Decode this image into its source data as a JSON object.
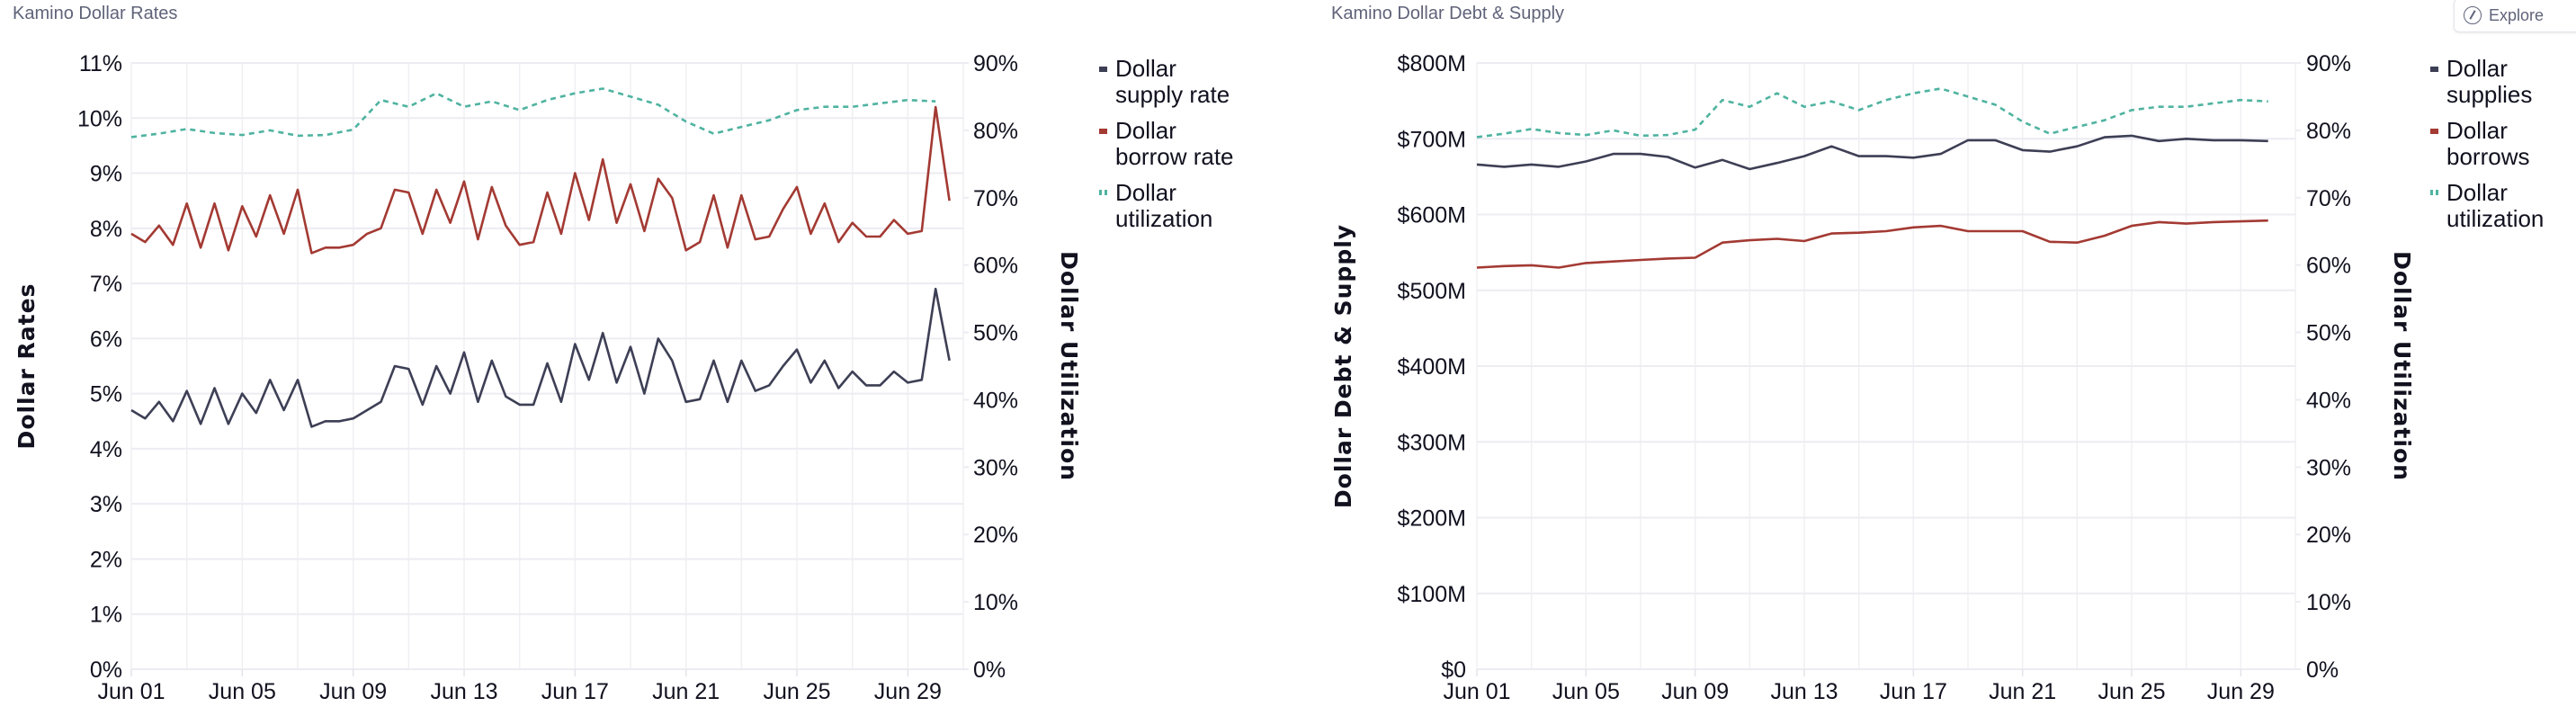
{
  "explore_button": {
    "label": "Explore"
  },
  "chart_data": [
    {
      "type": "line",
      "title": "Kamino Dollar Rates",
      "ylabel": "Dollar Rates",
      "y2label": "Dollar Utilization",
      "x_ticks": [
        "Jun 01",
        "Jun 05",
        "Jun 09",
        "Jun 13",
        "Jun 17",
        "Jun 21",
        "Jun 25",
        "Jun 29"
      ],
      "x_range_days": [
        1,
        31
      ],
      "ylim": [
        0,
        11
      ],
      "y_ticks": [
        "0%",
        "1%",
        "2%",
        "3%",
        "4%",
        "5%",
        "6%",
        "7%",
        "8%",
        "9%",
        "10%",
        "11%"
      ],
      "y2lim": [
        0,
        90
      ],
      "y2_ticks": [
        "0%",
        "10%",
        "20%",
        "30%",
        "40%",
        "50%",
        "60%",
        "70%",
        "80%",
        "90%"
      ],
      "grid": true,
      "legend_position": "right",
      "legend": [
        "Dollar supply rate",
        "Dollar borrow rate",
        "Dollar utilization"
      ],
      "series": [
        {
          "name": "Dollar supply rate",
          "axis": "left",
          "color": "#3d3f55",
          "x_start_day": 1,
          "step_days": 0.5,
          "values": [
            4.7,
            4.55,
            4.85,
            4.5,
            5.05,
            4.45,
            5.1,
            4.45,
            5.0,
            4.65,
            5.25,
            4.7,
            5.25,
            4.4,
            4.5,
            4.5,
            4.55,
            4.7,
            4.85,
            5.5,
            5.45,
            4.8,
            5.5,
            5.0,
            5.75,
            4.85,
            5.6,
            4.95,
            4.8,
            4.8,
            5.55,
            4.85,
            5.9,
            5.25,
            6.1,
            5.2,
            5.85,
            5.0,
            6.0,
            5.6,
            4.85,
            4.9,
            5.6,
            4.85,
            5.6,
            5.05,
            5.15,
            5.5,
            5.8,
            5.2,
            5.6,
            5.1,
            5.4,
            5.15,
            5.15,
            5.4,
            5.2,
            5.25,
            6.9,
            5.6
          ]
        },
        {
          "name": "Dollar borrow rate",
          "axis": "left",
          "color": "#a33a33",
          "x_start_day": 1,
          "step_days": 0.5,
          "values": [
            7.9,
            7.75,
            8.05,
            7.7,
            8.45,
            7.65,
            8.45,
            7.6,
            8.4,
            7.85,
            8.6,
            7.9,
            8.7,
            7.55,
            7.65,
            7.65,
            7.7,
            7.9,
            8.0,
            8.7,
            8.65,
            7.9,
            8.7,
            8.1,
            8.85,
            7.8,
            8.75,
            8.05,
            7.7,
            7.75,
            8.65,
            7.9,
            9.0,
            8.15,
            9.25,
            8.1,
            8.8,
            7.95,
            8.9,
            8.55,
            7.6,
            7.75,
            8.6,
            7.65,
            8.6,
            7.8,
            7.85,
            8.35,
            8.75,
            7.9,
            8.45,
            7.75,
            8.1,
            7.85,
            7.85,
            8.15,
            7.9,
            7.95,
            10.2,
            8.5
          ]
        },
        {
          "name": "Dollar utilization",
          "axis": "right",
          "color": "#4fb3a0",
          "dashed": true,
          "x_start_day": 1,
          "step_days": 1,
          "values": [
            79.0,
            79.5,
            80.2,
            79.6,
            79.3,
            80.0,
            79.2,
            79.3,
            80.1,
            84.5,
            83.5,
            85.5,
            83.5,
            84.3,
            83.0,
            84.5,
            85.5,
            86.2,
            85.0,
            83.8,
            81.3,
            79.5,
            80.5,
            81.5,
            83.0,
            83.5,
            83.5,
            84.0,
            84.5,
            84.3
          ]
        }
      ]
    },
    {
      "type": "line",
      "title": "Kamino Dollar Debt & Supply",
      "ylabel": "Dollar Debt & Supply",
      "y2label": "Dollar Utilization",
      "x_ticks": [
        "Jun 01",
        "Jun 05",
        "Jun 09",
        "Jun 13",
        "Jun 17",
        "Jun 21",
        "Jun 25",
        "Jun 29"
      ],
      "x_range_days": [
        1,
        31
      ],
      "ylim": [
        0,
        800
      ],
      "y_ticks": [
        "$0",
        "$100M",
        "$200M",
        "$300M",
        "$400M",
        "$500M",
        "$600M",
        "$700M",
        "$800M"
      ],
      "y2lim": [
        0,
        90
      ],
      "y2_ticks": [
        "0%",
        "10%",
        "20%",
        "30%",
        "40%",
        "50%",
        "60%",
        "70%",
        "80%",
        "90%"
      ],
      "grid": true,
      "legend_position": "right",
      "legend": [
        "Dollar supplies",
        "Dollar borrows",
        "Dollar utilization"
      ],
      "series": [
        {
          "name": "Dollar supplies",
          "axis": "left",
          "color": "#3d3f55",
          "x_start_day": 1,
          "step_days": 1,
          "values": [
            666,
            663,
            666,
            663,
            670,
            680,
            680,
            676,
            662,
            672,
            660,
            668,
            677,
            690,
            677,
            677,
            675,
            680,
            698,
            698,
            685,
            683,
            690,
            702,
            704,
            697,
            700,
            698,
            698,
            697
          ]
        },
        {
          "name": "Dollar borrows",
          "axis": "left",
          "color": "#a33a33",
          "x_start_day": 1,
          "step_days": 1,
          "values": [
            530,
            532,
            533,
            530,
            536,
            538,
            540,
            542,
            543,
            563,
            566,
            568,
            565,
            575,
            576,
            578,
            583,
            585,
            578,
            578,
            578,
            564,
            563,
            572,
            585,
            590,
            588,
            590,
            591,
            592
          ]
        },
        {
          "name": "Dollar utilization",
          "axis": "right",
          "color": "#4fb3a0",
          "dashed": true,
          "x_start_day": 1,
          "step_days": 1,
          "values": [
            79.0,
            79.5,
            80.2,
            79.6,
            79.3,
            80.0,
            79.2,
            79.3,
            80.1,
            84.5,
            83.5,
            85.5,
            83.5,
            84.3,
            83.0,
            84.5,
            85.5,
            86.2,
            85.0,
            83.8,
            81.3,
            79.5,
            80.5,
            81.5,
            83.0,
            83.5,
            83.5,
            84.0,
            84.5,
            84.3
          ]
        }
      ]
    }
  ]
}
